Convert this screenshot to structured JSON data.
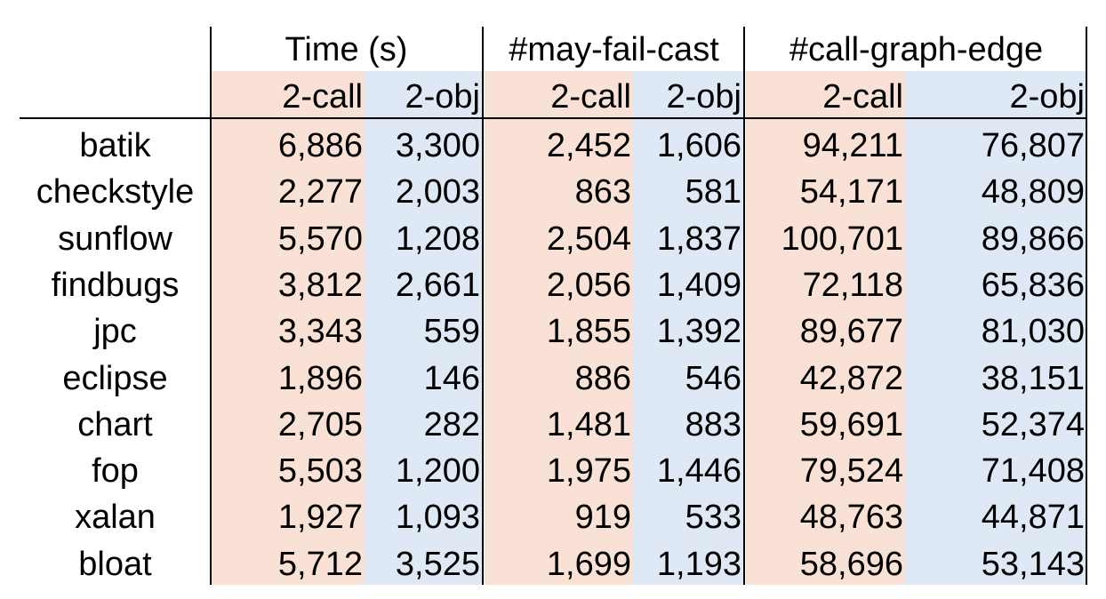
{
  "colors": {
    "call_bg": "#f9e2d5",
    "obj_bg": "#dfe9f5",
    "line": "#000000"
  },
  "groups": [
    "Time (s)",
    "#may-fail-cast",
    "#call-graph-edge"
  ],
  "subheaders": [
    "2-call",
    "2-obj",
    "2-call",
    "2-obj",
    "2-call",
    "2-obj"
  ],
  "chart_data": {
    "type": "table",
    "columns": [
      "Time (s) 2-call",
      "Time (s) 2-obj",
      "#may-fail-cast 2-call",
      "#may-fail-cast 2-obj",
      "#call-graph-edge 2-call",
      "#call-graph-edge 2-obj"
    ],
    "rows": [
      {
        "label": "batik",
        "values": [
          "6,886",
          "3,300",
          "2,452",
          "1,606",
          "94,211",
          "76,807"
        ]
      },
      {
        "label": "checkstyle",
        "values": [
          "2,277",
          "2,003",
          "863",
          "581",
          "54,171",
          "48,809"
        ]
      },
      {
        "label": "sunflow",
        "values": [
          "5,570",
          "1,208",
          "2,504",
          "1,837",
          "100,701",
          "89,866"
        ]
      },
      {
        "label": "findbugs",
        "values": [
          "3,812",
          "2,661",
          "2,056",
          "1,409",
          "72,118",
          "65,836"
        ]
      },
      {
        "label": "jpc",
        "values": [
          "3,343",
          "559",
          "1,855",
          "1,392",
          "89,677",
          "81,030"
        ]
      },
      {
        "label": "eclipse",
        "values": [
          "1,896",
          "146",
          "886",
          "546",
          "42,872",
          "38,151"
        ]
      },
      {
        "label": "chart",
        "values": [
          "2,705",
          "282",
          "1,481",
          "883",
          "59,691",
          "52,374"
        ]
      },
      {
        "label": "fop",
        "values": [
          "5,503",
          "1,200",
          "1,975",
          "1,446",
          "79,524",
          "71,408"
        ]
      },
      {
        "label": "xalan",
        "values": [
          "1,927",
          "1,093",
          "919",
          "533",
          "48,763",
          "44,871"
        ]
      },
      {
        "label": "bloat",
        "values": [
          "5,712",
          "3,525",
          "1,699",
          "1,193",
          "58,696",
          "53,143"
        ]
      }
    ]
  }
}
